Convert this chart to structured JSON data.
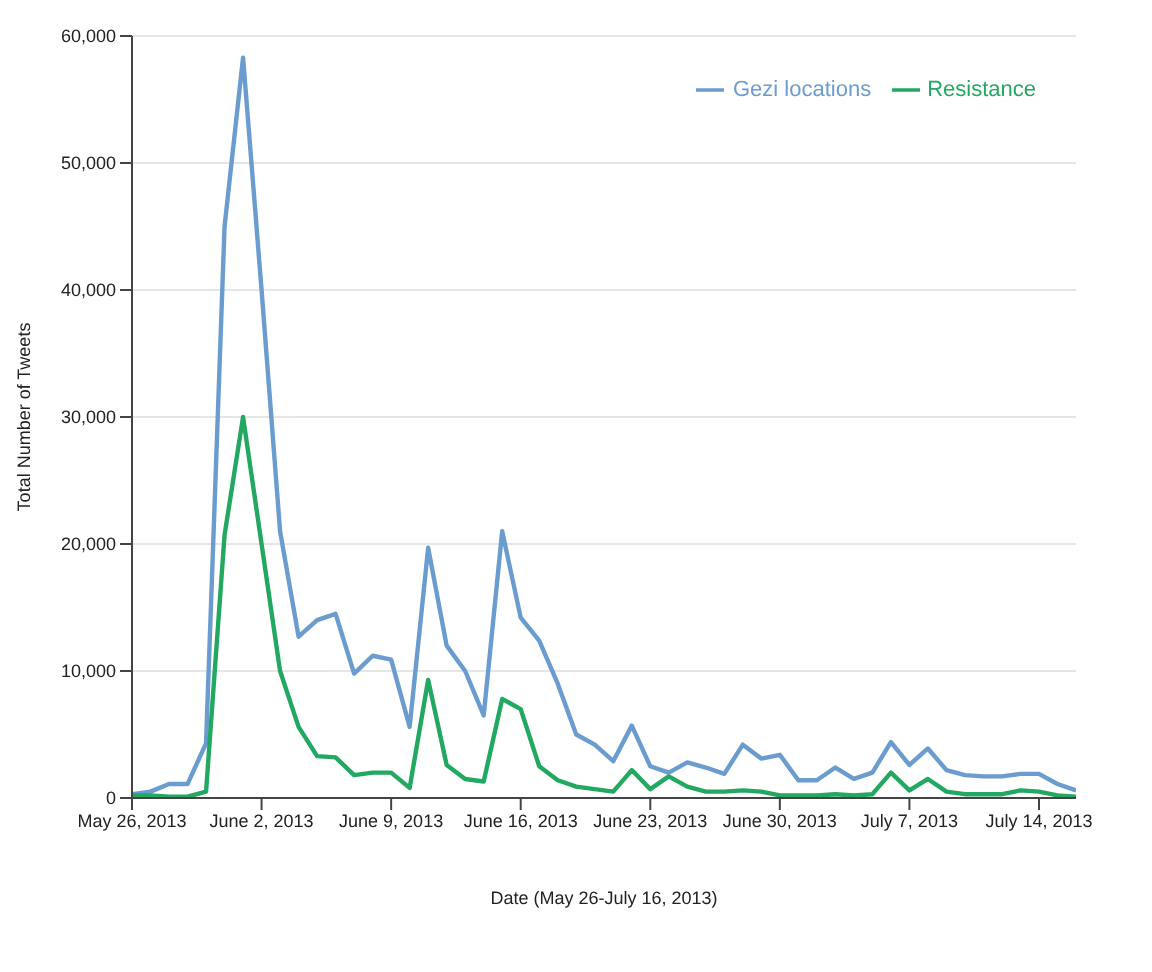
{
  "chart_data": {
    "type": "line",
    "xlabel": "Date (May 26-July 16, 2013)",
    "ylabel": "Total Number of Tweets",
    "x": [
      "2013-05-26",
      "2013-05-27",
      "2013-05-28",
      "2013-05-29",
      "2013-05-30",
      "2013-05-31",
      "2013-06-01",
      "2013-06-02",
      "2013-06-03",
      "2013-06-04",
      "2013-06-05",
      "2013-06-06",
      "2013-06-07",
      "2013-06-08",
      "2013-06-09",
      "2013-06-10",
      "2013-06-11",
      "2013-06-12",
      "2013-06-13",
      "2013-06-14",
      "2013-06-15",
      "2013-06-16",
      "2013-06-17",
      "2013-06-18",
      "2013-06-19",
      "2013-06-20",
      "2013-06-21",
      "2013-06-22",
      "2013-06-23",
      "2013-06-24",
      "2013-06-25",
      "2013-06-26",
      "2013-06-27",
      "2013-06-28",
      "2013-06-29",
      "2013-06-30",
      "2013-07-01",
      "2013-07-02",
      "2013-07-03",
      "2013-07-04",
      "2013-07-05",
      "2013-07-06",
      "2013-07-07",
      "2013-07-08",
      "2013-07-09",
      "2013-07-10",
      "2013-07-11",
      "2013-07-12",
      "2013-07-13",
      "2013-07-14",
      "2013-07-15",
      "2013-07-16"
    ],
    "series": [
      {
        "name": "Gezi locations",
        "color": "#6a9ccf",
        "values": [
          300,
          500,
          1100,
          1100,
          4300,
          45000,
          58300,
          40000,
          21000,
          12700,
          14000,
          14500,
          9800,
          11200,
          10900,
          5600,
          19700,
          12000,
          10000,
          6500,
          21000,
          14200,
          12400,
          9000,
          5000,
          4200,
          2900,
          5700,
          2500,
          2000,
          2800,
          2400,
          1900,
          4200,
          3100,
          3400,
          1400,
          1400,
          2400,
          1500,
          2000,
          4400,
          2600,
          3900,
          2200,
          1800,
          1700,
          1700,
          1900,
          1900,
          1100,
          600
        ]
      },
      {
        "name": "Resistance",
        "color": "#22a861",
        "values": [
          200,
          200,
          100,
          100,
          500,
          20700,
          30000,
          20000,
          10000,
          5600,
          3300,
          3200,
          1800,
          2000,
          2000,
          800,
          9300,
          2600,
          1500,
          1300,
          7800,
          7000,
          2500,
          1400,
          900,
          700,
          500,
          2200,
          700,
          1700,
          900,
          500,
          500,
          600,
          500,
          200,
          200,
          200,
          300,
          200,
          300,
          2000,
          600,
          1500,
          500,
          300,
          300,
          300,
          600,
          500,
          200,
          100
        ]
      }
    ],
    "xlim": [
      "2013-05-26",
      "2013-07-16"
    ],
    "xticks": [
      {
        "value": "2013-05-26",
        "label": "May 26, 2013"
      },
      {
        "value": "2013-06-02",
        "label": "June 2, 2013"
      },
      {
        "value": "2013-06-09",
        "label": "June 9, 2013"
      },
      {
        "value": "2013-06-16",
        "label": "June 16, 2013"
      },
      {
        "value": "2013-06-23",
        "label": "June 23, 2013"
      },
      {
        "value": "2013-06-30",
        "label": "June 30, 2013"
      },
      {
        "value": "2013-07-07",
        "label": "July 7, 2013"
      },
      {
        "value": "2013-07-14",
        "label": "July 14, 2013"
      }
    ],
    "ylim": [
      0,
      60000
    ],
    "yticks": [
      0,
      {
        "value": 10000,
        "label": "10,000"
      },
      {
        "value": 20000,
        "label": "20,000"
      },
      {
        "value": 30000,
        "label": "30,000"
      },
      {
        "value": 40000,
        "label": "40,000"
      },
      {
        "value": 50000,
        "label": "50,000"
      },
      {
        "value": 60000,
        "label": "60,000"
      }
    ],
    "grid": "y",
    "legend": "top right",
    "marker": "none",
    "line_style": "solid"
  }
}
